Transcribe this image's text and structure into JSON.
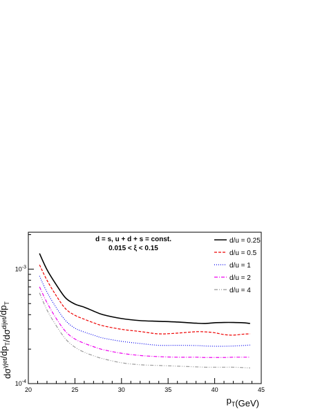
{
  "chart_data": {
    "type": "line",
    "xlabel": "p_T(GeV)",
    "ylabel": "dσ^γjet/dp_T/dσ^dijet/dp_T",
    "xlim": [
      20,
      45
    ],
    "ylim": [
      0.0001,
      0.0021
    ],
    "y_scale": "log",
    "x_ticks": [
      20,
      25,
      30,
      35,
      40,
      45
    ],
    "y_ticks": [
      {
        "value": 0.001,
        "label": "10^-3"
      },
      {
        "value": 0.0001,
        "label": "10^-4"
      }
    ],
    "annotations": [
      "d = s, u + d + s = const.",
      "0.015 < ξ < 0.15"
    ],
    "legend_position": "top-right",
    "x": [
      21.2,
      22,
      23,
      24,
      25,
      26,
      27,
      28,
      30,
      32,
      34,
      36,
      38,
      39,
      40,
      41,
      42,
      43,
      43.8
    ],
    "series": [
      {
        "name": "d/u = 0.25",
        "color": "#000000",
        "dash": "solid",
        "values": [
          0.00137,
          0.00099,
          0.00073,
          0.00056,
          0.000495,
          0.000465,
          0.00043,
          0.0004,
          0.00037,
          0.000355,
          0.00035,
          0.000345,
          0.000337,
          0.000335,
          0.00034,
          0.000342,
          0.000342,
          0.00034,
          0.000335
        ]
      },
      {
        "name": "d/u = 0.5",
        "color": "#ee0000",
        "dash": "dashed",
        "values": [
          0.00109,
          0.0008,
          0.000585,
          0.00045,
          0.000395,
          0.000365,
          0.00034,
          0.00032,
          0.000298,
          0.000285,
          0.000272,
          0.000276,
          0.000284,
          0.000283,
          0.000278,
          0.000268,
          0.000265,
          0.00027,
          0.000272
        ]
      },
      {
        "name": "d/u = 1",
        "color": "#0000ee",
        "dash": "dotted",
        "values": [
          0.00087,
          0.00063,
          0.00046,
          0.000355,
          0.000305,
          0.000282,
          0.000265,
          0.00025,
          0.000234,
          0.000224,
          0.000216,
          0.000216,
          0.000215,
          0.000213,
          0.000212,
          0.000212,
          0.000213,
          0.000215,
          0.000217
        ]
      },
      {
        "name": "d/u = 2",
        "color": "#ee00ee",
        "dash": "dash-dot",
        "values": [
          0.0007,
          0.00051,
          0.00037,
          0.000285,
          0.000245,
          0.000225,
          0.00021,
          0.000198,
          0.000184,
          0.000176,
          0.000172,
          0.00017,
          0.00017,
          0.000169,
          0.000169,
          0.000169,
          0.00017,
          0.00017,
          0.00017
        ]
      },
      {
        "name": "d/u = 4",
        "color": "#999999",
        "dash": "dash-dot-dot",
        "values": [
          0.00062,
          0.00044,
          0.00032,
          0.000245,
          0.000208,
          0.000188,
          0.000175,
          0.000165,
          0.000152,
          0.000146,
          0.000144,
          0.000142,
          0.00014,
          0.000139,
          0.000139,
          0.000139,
          0.000139,
          0.000138,
          0.000137
        ]
      }
    ]
  }
}
